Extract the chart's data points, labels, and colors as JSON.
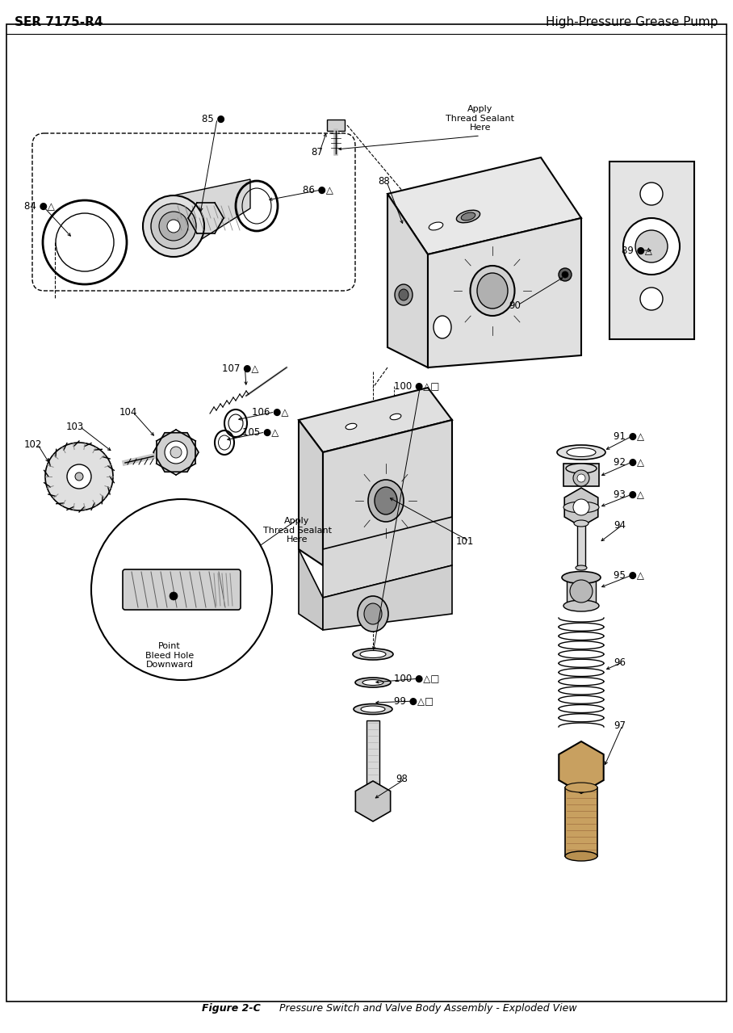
{
  "title_left": "SER 7175-R4",
  "title_right": "High-Pressure Grease Pump",
  "caption_bold": "Figure 2-C",
  "caption_italic": "    Pressure Switch and Valve Body Assembly - Exploded View",
  "bg": "#ffffff",
  "fig_width": 9.08,
  "fig_height": 12.79,
  "dpi": 100
}
